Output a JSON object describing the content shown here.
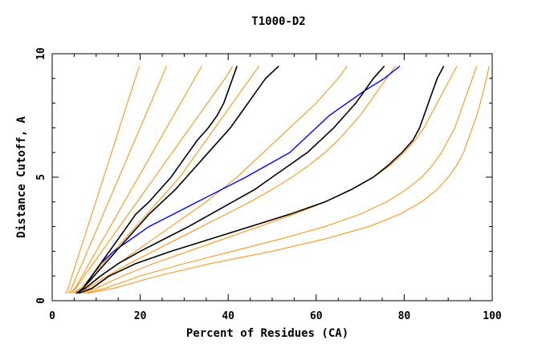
{
  "chart_data": {
    "type": "line",
    "title": "T1000-D2",
    "xlabel": "Percent of Residues (CA)",
    "ylabel": "Distance Cutoff, A",
    "xlim": [
      0,
      100
    ],
    "ylim": [
      0,
      10
    ],
    "x_ticks": [
      0,
      20,
      40,
      60,
      80,
      100
    ],
    "y_ticks": [
      0,
      5,
      10
    ],
    "grid": false,
    "legend": "none",
    "colors": {
      "models": "#ff8c00",
      "highlight": "#000000",
      "selected": "#0000ff"
    },
    "y": [
      0.3,
      0.5,
      1,
      1.5,
      2,
      2.5,
      3,
      3.5,
      4,
      4.5,
      5,
      5.5,
      6,
      6.5,
      7,
      7.5,
      8,
      8.5,
      9,
      9.5
    ],
    "series": [
      {
        "style": "selected",
        "x": [
          5.5,
          7,
          9,
          11,
          14,
          18,
          22,
          27.5,
          33,
          38.5,
          44,
          49,
          54,
          57,
          60,
          63,
          67,
          71,
          75.5,
          79
        ]
      },
      {
        "style": "highlight",
        "x": [
          5.5,
          7,
          9,
          11,
          13,
          15,
          17,
          19,
          22,
          24.5,
          27,
          29,
          31,
          33,
          35.5,
          37.5,
          39,
          40,
          41,
          42
        ]
      },
      {
        "style": "highlight",
        "x": [
          5.5,
          7,
          9.5,
          12,
          14.5,
          17,
          19.5,
          22,
          25,
          28,
          30.5,
          33,
          35.5,
          38,
          40.5,
          42.5,
          44.5,
          46.5,
          48.5,
          51.5
        ]
      },
      {
        "style": "highlight",
        "x": [
          5.5,
          7.5,
          11,
          15,
          20,
          25.5,
          31,
          36,
          41,
          46,
          50,
          54,
          58,
          61,
          64,
          66.5,
          69,
          71,
          73,
          75.5
        ]
      },
      {
        "style": "highlight",
        "x": [
          6,
          9,
          13,
          19,
          27,
          36,
          45,
          54,
          62,
          68,
          73,
          76.5,
          79.5,
          82,
          83.5,
          84.5,
          85.5,
          86.5,
          87.5,
          89
        ]
      },
      {
        "style": "model",
        "x": [
          3,
          3.6,
          4.5,
          5.4,
          6.3,
          7.2,
          8.1,
          9,
          9.9,
          10.8,
          11.7,
          12.6,
          13.5,
          14.4,
          15.3,
          16.2,
          17.1,
          18,
          18.9,
          19.8
        ]
      },
      {
        "style": "model",
        "x": [
          3.5,
          4.4,
          5.6,
          6.8,
          8,
          9.2,
          10.4,
          11.6,
          12.8,
          14,
          15.2,
          16.4,
          17.6,
          18.8,
          20,
          21.2,
          22.4,
          23.6,
          24.8,
          26
        ]
      },
      {
        "style": "model",
        "x": [
          4,
          5.2,
          6.8,
          8.4,
          10,
          11.6,
          13.2,
          14.8,
          16.4,
          18,
          19.6,
          21.2,
          22.8,
          24.4,
          26,
          27.6,
          29.2,
          30.8,
          32.4,
          34
        ]
      },
      {
        "style": "model",
        "x": [
          4,
          5.4,
          7.3,
          9.3,
          11.3,
          13.3,
          15.3,
          17.3,
          19.3,
          21.3,
          23.3,
          25.3,
          27.3,
          29.3,
          31.3,
          33.3,
          35.3,
          37.3,
          39.3,
          41
        ]
      },
      {
        "style": "model",
        "x": [
          4.5,
          6.5,
          9,
          11.5,
          14,
          16.5,
          19,
          21.5,
          24,
          26.5,
          29,
          31,
          33,
          35,
          37,
          39,
          41,
          43,
          45,
          47
        ]
      },
      {
        "style": "model",
        "x": [
          5,
          7.5,
          11,
          15,
          19,
          23,
          27,
          31,
          35,
          38.5,
          42,
          45,
          48,
          51,
          54,
          57,
          60,
          62.5,
          65,
          67
        ]
      },
      {
        "style": "model",
        "x": [
          5,
          8,
          12.5,
          17.5,
          23,
          28.5,
          34,
          39.5,
          45,
          50,
          54.5,
          58.5,
          62,
          65,
          67.5,
          70,
          72,
          74,
          76,
          78
        ]
      },
      {
        "style": "model",
        "x": [
          6,
          10,
          16,
          23,
          31,
          39,
          47,
          55,
          62,
          68,
          73,
          77,
          80,
          82.5,
          84.5,
          86,
          87.5,
          89,
          90.5,
          92
        ]
      },
      {
        "style": "model",
        "x": [
          7,
          12,
          20,
          30,
          41,
          52,
          62,
          70,
          76,
          80.5,
          84,
          86.5,
          88.5,
          90,
          91.5,
          92.5,
          93.5,
          94.5,
          95.5,
          96.5
        ]
      },
      {
        "style": "model",
        "x": [
          8,
          14,
          24,
          36,
          50,
          62,
          72,
          79,
          84,
          87.5,
          90,
          92,
          93.5,
          94.5,
          95.5,
          96.5,
          97.3,
          98,
          98.7,
          99.3
        ]
      }
    ]
  }
}
